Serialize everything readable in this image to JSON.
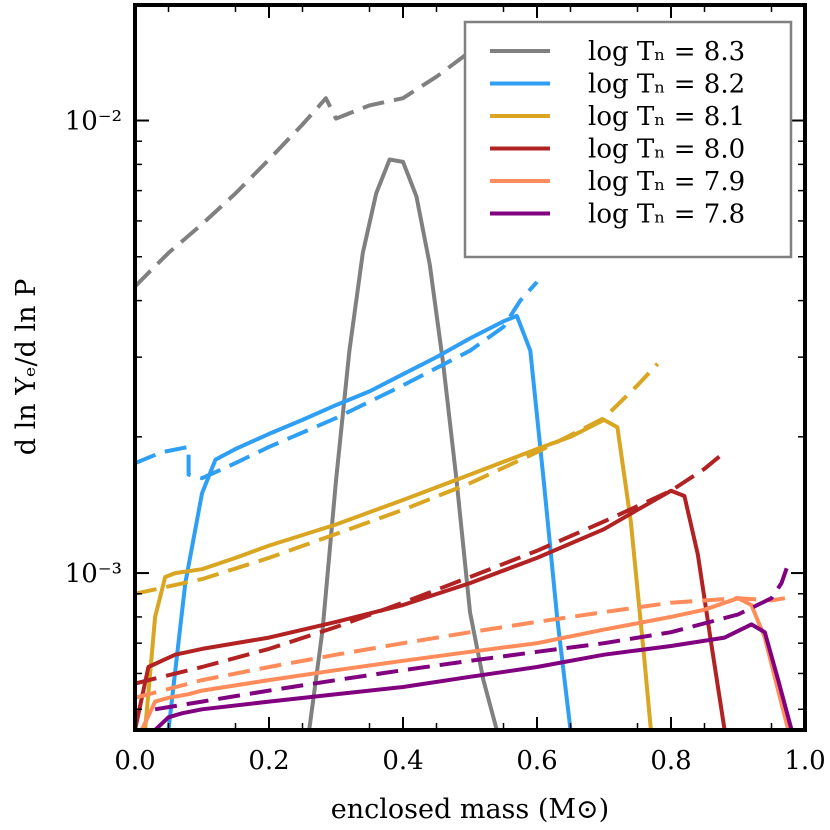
{
  "chart_data": {
    "type": "line",
    "xlabel": "enclosed mass (M⊙)",
    "ylabel": "d ln Yₑ/d ln P",
    "xlim": [
      0.0,
      1.0
    ],
    "ylim": [
      0.00045,
      0.018
    ],
    "y_scale": "log",
    "x_ticks": [
      0.0,
      0.2,
      0.4,
      0.6,
      0.8,
      1.0
    ],
    "x_tick_labels": [
      "0.0",
      "0.2",
      "0.4",
      "0.6",
      "0.8",
      "1.0"
    ],
    "y_major_ticks": [
      0.001,
      0.01
    ],
    "y_tick_labels": [
      "10⁻³",
      "10⁻²"
    ],
    "grid": false,
    "legend": {
      "placement": "top-right"
    },
    "series": [
      {
        "name": "log T_c = 8.3",
        "label": "log Tₙ = 8.3",
        "color": "#808080",
        "solid": {
          "x": [
            0.26,
            0.28,
            0.3,
            0.32,
            0.34,
            0.36,
            0.38,
            0.4,
            0.42,
            0.44,
            0.46,
            0.48,
            0.5,
            0.52,
            0.54
          ],
          "y": [
            0.00045,
            0.00075,
            0.0016,
            0.0031,
            0.0051,
            0.0069,
            0.0082,
            0.0081,
            0.0068,
            0.0048,
            0.0029,
            0.0016,
            0.00082,
            0.00058,
            0.00045
          ]
        },
        "dashed": {
          "x": [
            0.0,
            0.05,
            0.1,
            0.15,
            0.2,
            0.25,
            0.285,
            0.3,
            0.35,
            0.4,
            0.45,
            0.5
          ],
          "y": [
            0.0043,
            0.0051,
            0.0059,
            0.0069,
            0.0082,
            0.0098,
            0.0112,
            0.0101,
            0.0108,
            0.0112,
            0.0125,
            0.0142
          ]
        }
      },
      {
        "name": "log T_c = 8.2",
        "label": "log Tₙ = 8.2",
        "color": "#2e9ff5",
        "solid": {
          "x": [
            0.05,
            0.075,
            0.1,
            0.12,
            0.15,
            0.2,
            0.25,
            0.3,
            0.35,
            0.4,
            0.45,
            0.5,
            0.55,
            0.57,
            0.59,
            0.61,
            0.63,
            0.65
          ],
          "y": [
            0.00045,
            0.00095,
            0.0015,
            0.00178,
            0.00188,
            0.00203,
            0.00218,
            0.00235,
            0.00252,
            0.00275,
            0.003,
            0.0033,
            0.0036,
            0.0037,
            0.0031,
            0.0016,
            0.0008,
            0.00045
          ]
        },
        "dashed": {
          "x": [
            0.0,
            0.04,
            0.08,
            0.08,
            0.1,
            0.15,
            0.2,
            0.3,
            0.4,
            0.5,
            0.55,
            0.575,
            0.6
          ],
          "y": [
            0.00175,
            0.00185,
            0.0019,
            0.00165,
            0.00162,
            0.00175,
            0.0019,
            0.0022,
            0.0026,
            0.0031,
            0.0035,
            0.004,
            0.0044
          ]
        }
      },
      {
        "name": "log T_c = 8.1",
        "label": "log Tₙ = 8.1",
        "color": "#daa520",
        "solid": {
          "x": [
            0.015,
            0.03,
            0.045,
            0.06,
            0.1,
            0.15,
            0.2,
            0.3,
            0.4,
            0.5,
            0.6,
            0.65,
            0.7,
            0.72,
            0.74,
            0.76,
            0.77
          ],
          "y": [
            0.00045,
            0.0008,
            0.00098,
            0.001,
            0.00102,
            0.00108,
            0.00115,
            0.00128,
            0.00145,
            0.00165,
            0.00188,
            0.002,
            0.00218,
            0.0021,
            0.0013,
            0.00065,
            0.00045
          ]
        },
        "dashed": {
          "x": [
            0.0,
            0.1,
            0.2,
            0.3,
            0.4,
            0.5,
            0.6,
            0.7,
            0.75,
            0.78
          ],
          "y": [
            0.0009,
            0.00097,
            0.00108,
            0.00122,
            0.00138,
            0.00158,
            0.00185,
            0.0022,
            0.0026,
            0.0029
          ]
        }
      },
      {
        "name": "log T_c = 8.0",
        "label": "log Tₙ = 8.0",
        "color": "#b22222",
        "solid": {
          "x": [
            0.0,
            0.02,
            0.04,
            0.06,
            0.1,
            0.2,
            0.3,
            0.4,
            0.5,
            0.6,
            0.7,
            0.75,
            0.8,
            0.82,
            0.84,
            0.86,
            0.88
          ],
          "y": [
            0.00045,
            0.00062,
            0.00064,
            0.00066,
            0.00068,
            0.00072,
            0.00078,
            0.00085,
            0.00095,
            0.00108,
            0.00125,
            0.00138,
            0.00152,
            0.00148,
            0.0011,
            0.0007,
            0.00045
          ]
        },
        "dashed": {
          "x": [
            0.0,
            0.1,
            0.2,
            0.3,
            0.4,
            0.5,
            0.6,
            0.7,
            0.8,
            0.85,
            0.88
          ],
          "y": [
            0.00057,
            0.00062,
            0.00068,
            0.00076,
            0.00086,
            0.00098,
            0.00112,
            0.0013,
            0.00152,
            0.0017,
            0.00185
          ]
        }
      },
      {
        "name": "log T_c = 7.9",
        "label": "log Tₙ = 7.9",
        "color": "#ff8c5a",
        "solid": {
          "x": [
            0.01,
            0.03,
            0.05,
            0.08,
            0.1,
            0.2,
            0.3,
            0.4,
            0.5,
            0.6,
            0.7,
            0.8,
            0.85,
            0.9,
            0.92,
            0.94,
            0.96,
            0.975
          ],
          "y": [
            0.00045,
            0.00052,
            0.00053,
            0.00054,
            0.00055,
            0.00058,
            0.00061,
            0.00064,
            0.00067,
            0.0007,
            0.00075,
            0.0008,
            0.00083,
            0.00088,
            0.00085,
            0.00072,
            0.00055,
            0.00045
          ]
        },
        "dashed": {
          "x": [
            0.0,
            0.1,
            0.2,
            0.3,
            0.4,
            0.5,
            0.6,
            0.7,
            0.8,
            0.9,
            0.95,
            0.97
          ],
          "y": [
            0.00053,
            0.00058,
            0.00062,
            0.00066,
            0.0007,
            0.00074,
            0.00078,
            0.00082,
            0.00086,
            0.00088,
            0.00087,
            0.00088
          ]
        }
      },
      {
        "name": "log T_c = 7.8",
        "label": "log Tₙ = 7.8",
        "color": "#800080",
        "solid": {
          "x": [
            0.03,
            0.05,
            0.07,
            0.1,
            0.2,
            0.3,
            0.4,
            0.5,
            0.6,
            0.7,
            0.8,
            0.88,
            0.92,
            0.94,
            0.96,
            0.98
          ],
          "y": [
            0.00045,
            0.00048,
            0.00049,
            0.0005,
            0.00052,
            0.00054,
            0.00056,
            0.00059,
            0.00062,
            0.00066,
            0.00069,
            0.00072,
            0.00077,
            0.00074,
            0.00058,
            0.00045
          ]
        },
        "dashed": {
          "x": [
            0.03,
            0.1,
            0.2,
            0.3,
            0.4,
            0.5,
            0.6,
            0.7,
            0.8,
            0.9,
            0.95,
            0.965,
            0.975
          ],
          "y": [
            0.0005,
            0.00052,
            0.00055,
            0.00058,
            0.00061,
            0.00064,
            0.00067,
            0.0007,
            0.00074,
            0.00081,
            0.00088,
            0.00095,
            0.00105
          ]
        }
      }
    ]
  }
}
